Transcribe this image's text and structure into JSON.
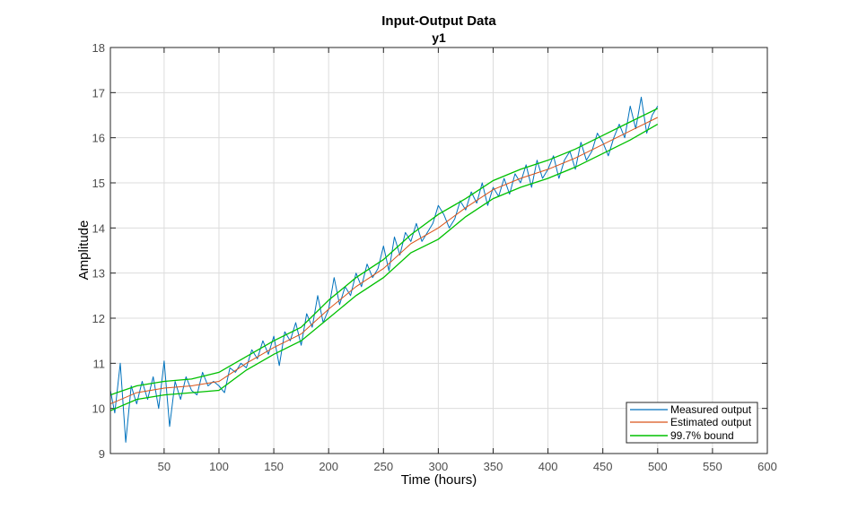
{
  "chart_data": {
    "type": "line",
    "title": "Input-Output Data",
    "subtitle": "y1",
    "xlabel": "Time (hours)",
    "ylabel": "Amplitude",
    "xlim": [
      1,
      600
    ],
    "ylim": [
      9,
      18
    ],
    "xticks": [
      50,
      100,
      150,
      200,
      250,
      300,
      350,
      400,
      450,
      500,
      550,
      600
    ],
    "yticks": [
      9,
      10,
      11,
      12,
      13,
      14,
      15,
      16,
      17,
      18
    ],
    "grid": true,
    "legend_position": "bottom-right",
    "series": [
      {
        "name": "Measured output",
        "color": "#0072BD",
        "x": [
          1,
          5,
          10,
          15,
          20,
          25,
          30,
          35,
          40,
          45,
          50,
          55,
          60,
          65,
          70,
          75,
          80,
          85,
          90,
          95,
          100,
          105,
          110,
          115,
          120,
          125,
          130,
          135,
          140,
          145,
          150,
          155,
          160,
          165,
          170,
          175,
          180,
          185,
          190,
          195,
          200,
          205,
          210,
          215,
          220,
          225,
          230,
          235,
          240,
          245,
          250,
          255,
          260,
          265,
          270,
          275,
          280,
          285,
          290,
          295,
          300,
          305,
          310,
          315,
          320,
          325,
          330,
          335,
          340,
          345,
          350,
          355,
          360,
          365,
          370,
          375,
          380,
          385,
          390,
          395,
          400,
          405,
          410,
          415,
          420,
          425,
          430,
          435,
          440,
          445,
          450,
          455,
          460,
          465,
          470,
          475,
          480,
          485,
          490,
          495,
          500
        ],
        "y": [
          10.4,
          9.9,
          11.0,
          9.25,
          10.5,
          10.1,
          10.6,
          10.2,
          10.7,
          10.0,
          11.05,
          9.6,
          10.6,
          10.2,
          10.7,
          10.4,
          10.3,
          10.8,
          10.5,
          10.6,
          10.5,
          10.35,
          10.9,
          10.8,
          11.0,
          10.9,
          11.3,
          11.1,
          11.5,
          11.2,
          11.6,
          10.95,
          11.7,
          11.5,
          11.9,
          11.4,
          12.1,
          11.8,
          12.5,
          11.9,
          12.2,
          12.9,
          12.3,
          12.7,
          12.5,
          13.0,
          12.7,
          13.2,
          12.9,
          13.1,
          13.6,
          13.05,
          13.8,
          13.4,
          13.9,
          13.7,
          14.1,
          13.7,
          13.9,
          14.1,
          14.5,
          14.3,
          14.0,
          14.2,
          14.6,
          14.4,
          14.8,
          14.55,
          15.0,
          14.5,
          14.9,
          14.7,
          15.1,
          14.75,
          15.2,
          15.0,
          15.4,
          14.9,
          15.5,
          15.1,
          15.3,
          15.6,
          15.1,
          15.5,
          15.7,
          15.3,
          15.9,
          15.5,
          15.7,
          16.1,
          15.9,
          15.6,
          16.0,
          16.3,
          16.0,
          16.7,
          16.2,
          16.9,
          16.1,
          16.5,
          16.7
        ]
      },
      {
        "name": "Estimated output",
        "color": "#D95319",
        "x": [
          1,
          25,
          50,
          75,
          100,
          125,
          150,
          175,
          200,
          225,
          250,
          275,
          300,
          325,
          350,
          375,
          400,
          425,
          450,
          475,
          500
        ],
        "y": [
          10.1,
          10.35,
          10.45,
          10.5,
          10.6,
          11.0,
          11.35,
          11.65,
          12.2,
          12.7,
          13.1,
          13.65,
          14.0,
          14.45,
          14.85,
          15.1,
          15.3,
          15.55,
          15.85,
          16.15,
          16.45
        ]
      },
      {
        "name": "99.7% bound",
        "color": "#00C000",
        "x": [
          1,
          25,
          50,
          75,
          100,
          125,
          150,
          175,
          200,
          225,
          250,
          275,
          300,
          325,
          350,
          375,
          400,
          425,
          450,
          475,
          500
        ],
        "upper": [
          10.3,
          10.5,
          10.6,
          10.65,
          10.8,
          11.15,
          11.5,
          11.8,
          12.4,
          12.9,
          13.3,
          13.85,
          14.3,
          14.65,
          15.05,
          15.3,
          15.5,
          15.75,
          16.05,
          16.35,
          16.65
        ],
        "lower": [
          9.95,
          10.2,
          10.3,
          10.35,
          10.4,
          10.85,
          11.2,
          11.5,
          12.0,
          12.5,
          12.9,
          13.45,
          13.75,
          14.25,
          14.65,
          14.9,
          15.1,
          15.35,
          15.65,
          15.95,
          16.3
        ]
      }
    ]
  }
}
